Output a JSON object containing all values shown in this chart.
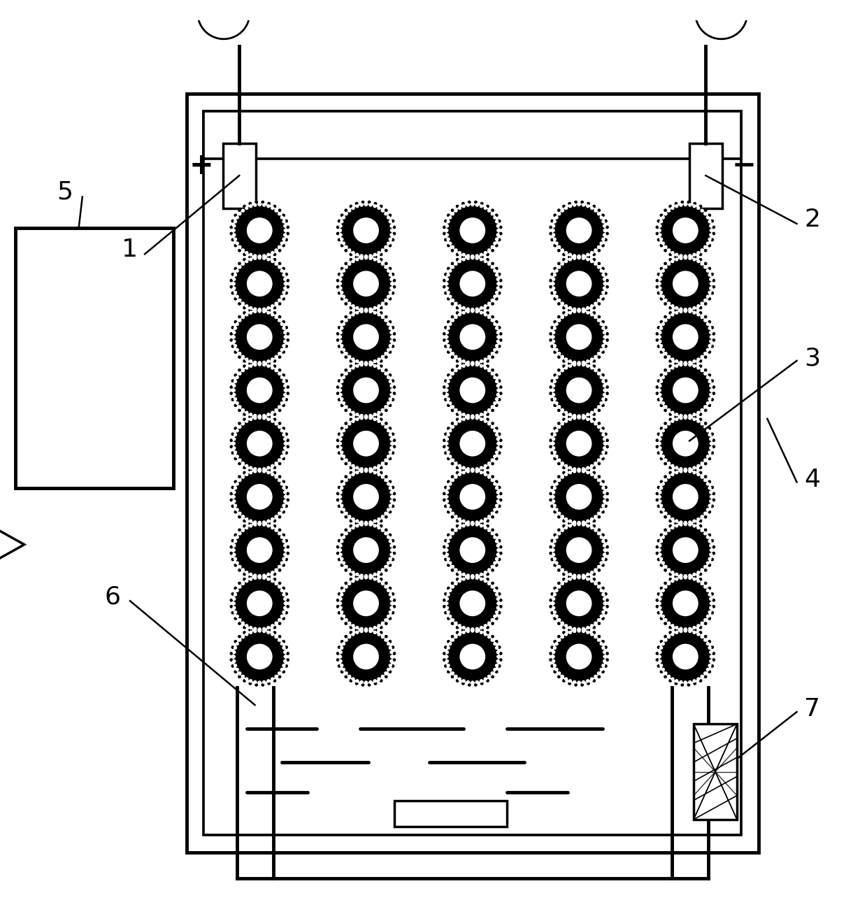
{
  "bg_color": "#ffffff",
  "lc": "#000000",
  "n_cols": 5,
  "n_rows": 9,
  "label_fontsize": 26,
  "figw": 12.4,
  "figh": 12.97
}
